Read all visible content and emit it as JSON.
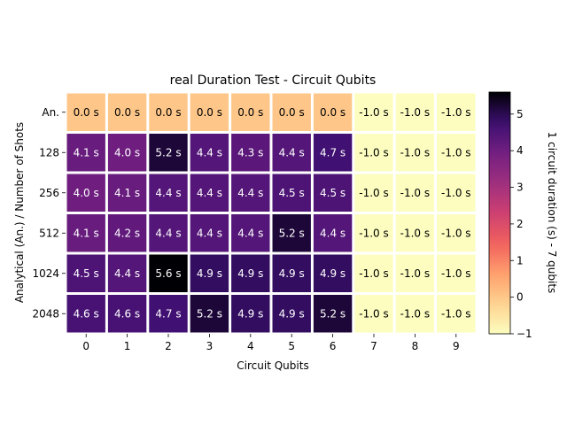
{
  "chart_data": {
    "type": "heatmap",
    "title": "real Duration Test - Circuit Qubits",
    "xlabel": "Circuit Qubits",
    "ylabel": "Analytical (An.) / Number of Shots",
    "x_categories": [
      "0",
      "1",
      "2",
      "3",
      "4",
      "5",
      "6",
      "7",
      "8",
      "9"
    ],
    "y_categories": [
      "An.",
      "128",
      "256",
      "512",
      "1024",
      "2048"
    ],
    "values": [
      [
        0.0,
        0.0,
        0.0,
        0.0,
        0.0,
        0.0,
        0.0,
        -1.0,
        -1.0,
        -1.0
      ],
      [
        4.1,
        4.0,
        5.2,
        4.4,
        4.3,
        4.4,
        4.7,
        -1.0,
        -1.0,
        -1.0
      ],
      [
        4.0,
        4.1,
        4.4,
        4.4,
        4.4,
        4.5,
        4.5,
        -1.0,
        -1.0,
        -1.0
      ],
      [
        4.1,
        4.2,
        4.4,
        4.4,
        4.4,
        5.2,
        4.4,
        -1.0,
        -1.0,
        -1.0
      ],
      [
        4.5,
        4.4,
        5.6,
        4.9,
        4.9,
        4.9,
        4.9,
        -1.0,
        -1.0,
        -1.0
      ],
      [
        4.6,
        4.6,
        4.7,
        5.2,
        4.9,
        4.9,
        5.2,
        -1.0,
        -1.0,
        -1.0
      ]
    ],
    "value_suffix": " s",
    "colorbar": {
      "label": "1 circuit duration (s) - 7 qubits",
      "colormap": "magma_r",
      "range": [
        -1,
        5.6
      ],
      "ticks": [
        "−1",
        "0",
        "1",
        "2",
        "3",
        "4",
        "5"
      ]
    },
    "cell_border_color": "#ffffff",
    "grid": false
  }
}
